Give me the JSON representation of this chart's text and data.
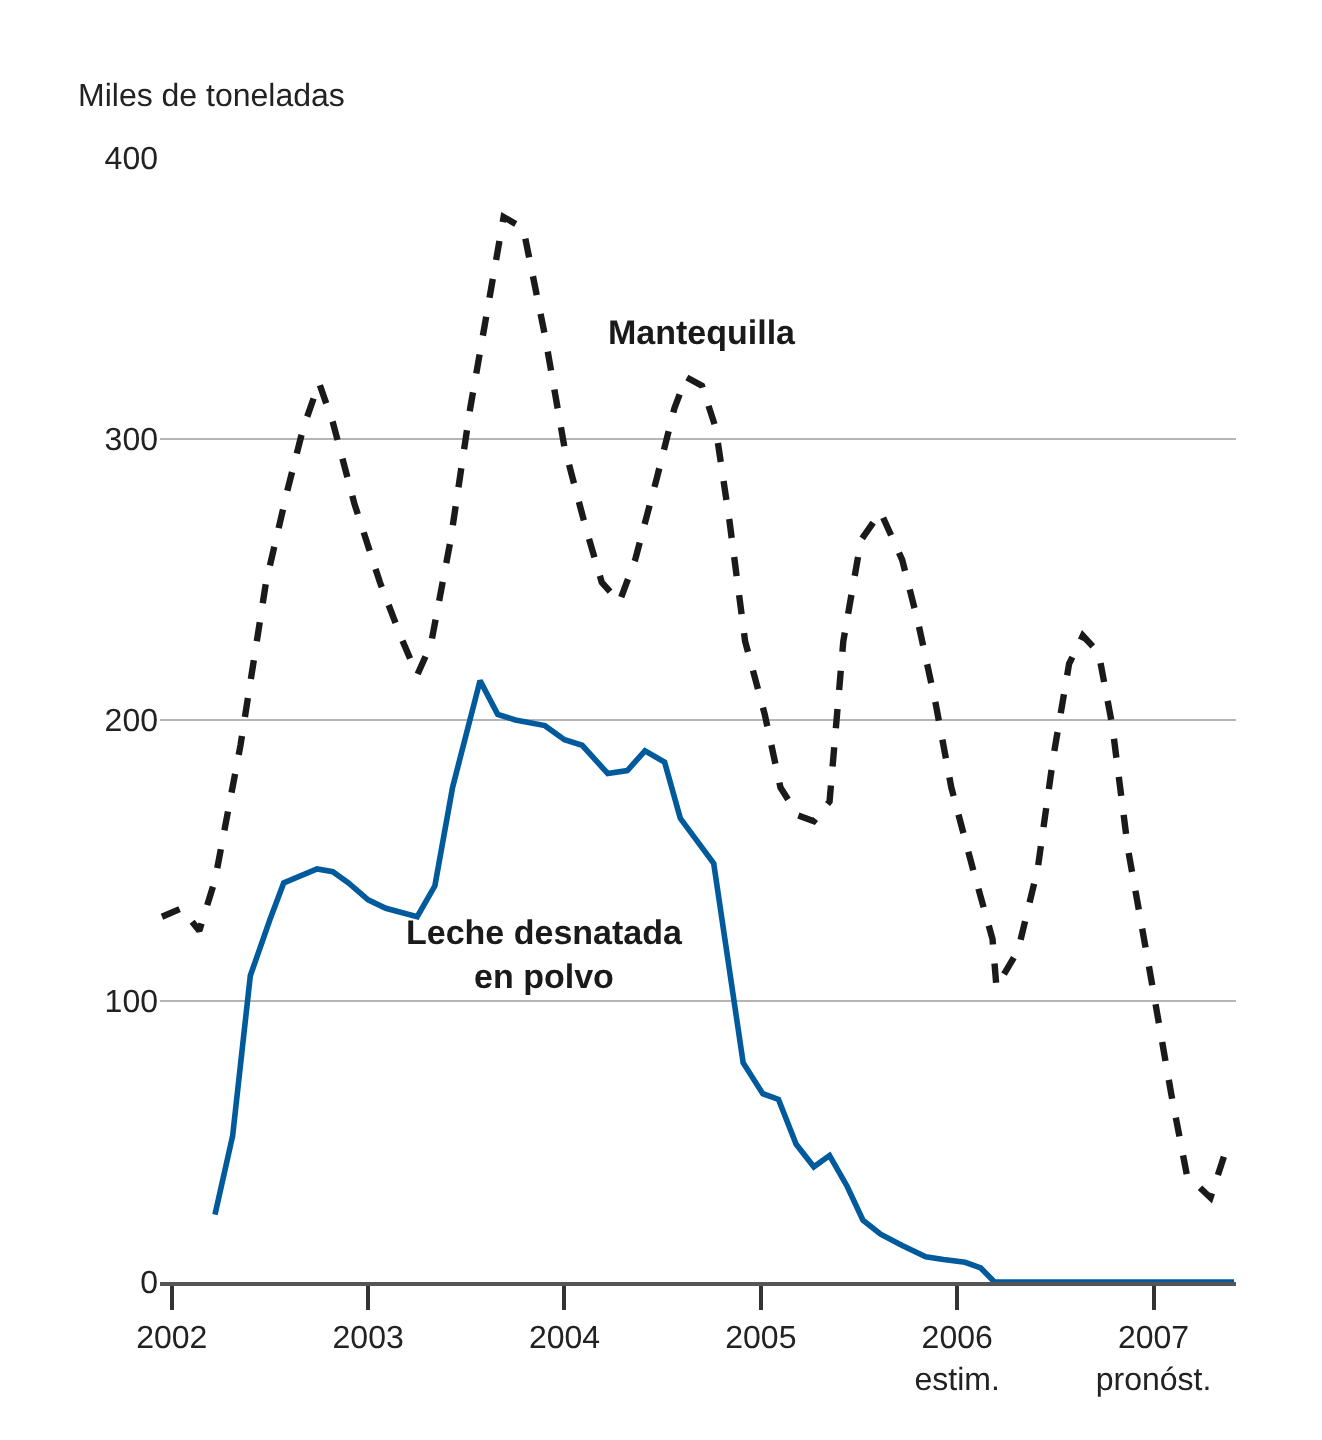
{
  "chart_data": {
    "type": "line",
    "ylabel": "Miles de toneladas",
    "xlim": [
      2001.94,
      2007.42
    ],
    "ylim": [
      0,
      400
    ],
    "xticks": [
      {
        "value": 2002,
        "label": "2002"
      },
      {
        "value": 2003,
        "label": "2003"
      },
      {
        "value": 2004,
        "label": "2004"
      },
      {
        "value": 2005,
        "label": "2005"
      },
      {
        "value": 2006,
        "label": "2006\nestim."
      },
      {
        "value": 2007,
        "label": "2007\npronóst."
      }
    ],
    "yticks": [
      0,
      100,
      200,
      300,
      400
    ],
    "grid": "y",
    "legend": false,
    "series": [
      {
        "name": "Mantequilla",
        "color": "#1a1a1a",
        "line_style": "dashed",
        "x": [
          2001.95,
          2002.05,
          2002.14,
          2002.22,
          2002.35,
          2002.48,
          2002.59,
          2002.67,
          2002.75,
          2002.82,
          2002.93,
          2003.06,
          2003.17,
          2003.25,
          2003.32,
          2003.42,
          2003.52,
          2003.62,
          2003.69,
          2003.79,
          2003.9,
          2004.0,
          2004.11,
          2004.19,
          2004.28,
          2004.36,
          2004.47,
          2004.56,
          2004.62,
          2004.7,
          2004.77,
          2004.84,
          2004.92,
          2005.02,
          2005.1,
          2005.19,
          2005.27,
          2005.35,
          2005.42,
          2005.51,
          2005.61,
          2005.72,
          2005.8,
          2005.89,
          2005.97,
          2006.08,
          2006.18,
          2006.2,
          2006.31,
          2006.41,
          2006.49,
          2006.57,
          2006.64,
          2006.72,
          2006.79,
          2006.87,
          2006.98,
          2007.09,
          2007.17,
          2007.29,
          2007.36
        ],
        "values": [
          130,
          133,
          125,
          143,
          191,
          249,
          282,
          304,
          320,
          306,
          277,
          249,
          229,
          216,
          227,
          264,
          311,
          351,
          379,
          375,
          337,
          297,
          268,
          249,
          242,
          257,
          286,
          311,
          322,
          319,
          304,
          271,
          228,
          202,
          176,
          166,
          164,
          171,
          228,
          264,
          274,
          257,
          235,
          206,
          176,
          147,
          122,
          105,
          118,
          147,
          187,
          220,
          230,
          224,
          198,
          154,
          111,
          67,
          38,
          30,
          45
        ]
      },
      {
        "name": "Leche desnatada\nen polvo",
        "color": "#005a9c",
        "line_style": "solid",
        "x": [
          2002.22,
          2002.31,
          2002.4,
          2002.5,
          2002.57,
          2002.74,
          2002.82,
          2002.9,
          2003.0,
          2003.09,
          2003.25,
          2003.34,
          2003.43,
          2003.57,
          2003.66,
          2003.75,
          2003.9,
          2004.0,
          2004.09,
          2004.22,
          2004.32,
          2004.41,
          2004.51,
          2004.59,
          2004.76,
          2004.91,
          2005.01,
          2005.09,
          2005.18,
          2005.27,
          2005.35,
          2005.44,
          2005.52,
          2005.61,
          2005.72,
          2005.84,
          2005.93,
          2006.04,
          2006.12,
          2006.19,
          2007.41
        ],
        "values": [
          24,
          52,
          109,
          129,
          142,
          147,
          146,
          142,
          136,
          133,
          130,
          141,
          176,
          214,
          202,
          200,
          198,
          193,
          191,
          181,
          182,
          189,
          185,
          165,
          149,
          78,
          67,
          65,
          49,
          41,
          45,
          34,
          22,
          17,
          13,
          9,
          8,
          7,
          5,
          0,
          0
        ]
      }
    ]
  }
}
